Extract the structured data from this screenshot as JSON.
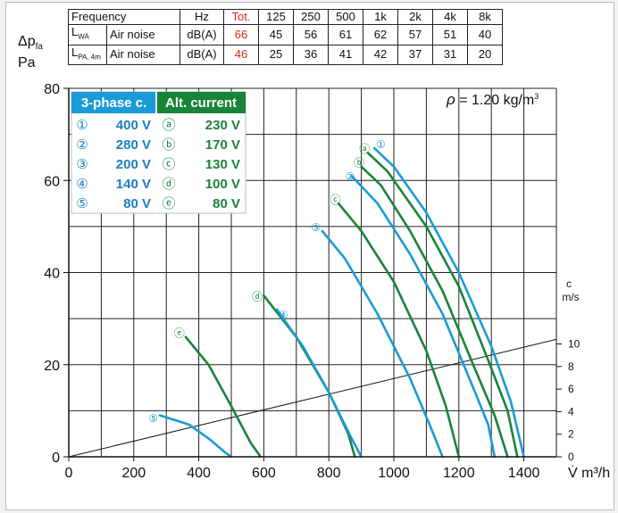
{
  "noise_table": {
    "header": [
      "Frequency",
      "Hz",
      "Tot.",
      "125",
      "250",
      "500",
      "1k",
      "2k",
      "4k",
      "8k"
    ],
    "rows": [
      {
        "code": "L",
        "code_sub": "WA",
        "name": "Air noise",
        "unit": "dB(A)",
        "values": [
          "66",
          "45",
          "56",
          "61",
          "62",
          "57",
          "51",
          "40"
        ]
      },
      {
        "code": "L",
        "code_sub": "PA, 4m",
        "name": "Air noise",
        "unit": "dB(A)",
        "values": [
          "46",
          "25",
          "36",
          "41",
          "42",
          "37",
          "31",
          "20"
        ]
      }
    ],
    "tot_color": "#e2231a"
  },
  "y_axis_label": {
    "symbol": "Δp",
    "sub": "fa",
    "unit": "Pa"
  },
  "density_label": "= 1.20 kg/m",
  "density_symbol": "ρ",
  "density_sup": "3",
  "legend": {
    "header_3phase": "3-phase c.",
    "header_alt": "Alt. current",
    "rows": [
      {
        "num": "①",
        "v3": "400 V",
        "alt": "ⓐ",
        "va": "230 V"
      },
      {
        "num": "②",
        "v3": "280 V",
        "alt": "ⓑ",
        "va": "170 V"
      },
      {
        "num": "③",
        "v3": "200 V",
        "alt": "ⓒ",
        "va": "130 V"
      },
      {
        "num": "④",
        "v3": "140 V",
        "alt": "ⓓ",
        "va": "100 V"
      },
      {
        "num": "⑤",
        "v3": "80 V",
        "alt": "ⓔ",
        "va": "80 V"
      }
    ]
  },
  "colors": {
    "three_phase": "#1a9ad7",
    "alt_current": "#188438",
    "text_3phase": "#1a7fbf",
    "text_alt": "#188438"
  },
  "chart_data": {
    "type": "line",
    "xlabel": "V̇ m³/h",
    "ylabel": "Δp fa Pa",
    "xlim": [
      0,
      1500
    ],
    "ylim": [
      0,
      80
    ],
    "x_ticks": [
      0,
      200,
      400,
      600,
      800,
      1000,
      1200,
      1400
    ],
    "y_ticks": [
      0,
      20,
      40,
      60,
      80
    ],
    "grid": true,
    "secondary_axis": {
      "label_top": "c",
      "label_unit": "m/s",
      "ticks": [
        0,
        2,
        4,
        6,
        8,
        10
      ]
    },
    "velocity_line": {
      "x": [
        0,
        1500
      ],
      "y": [
        0,
        25.5
      ]
    },
    "series": [
      {
        "name": "①",
        "group": "3-phase",
        "x": [
          940,
          1000,
          1100,
          1200,
          1300,
          1360,
          1400
        ],
        "y": [
          67,
          63,
          53,
          40,
          24,
          12,
          0
        ]
      },
      {
        "name": "ⓐ",
        "group": "alt",
        "x": [
          920,
          980,
          1100,
          1200,
          1290,
          1350,
          1380
        ],
        "y": [
          66,
          62,
          50,
          37,
          21,
          10,
          0
        ]
      },
      {
        "name": "ⓑ",
        "group": "alt",
        "x": [
          900,
          960,
          1050,
          1150,
          1250,
          1310,
          1350
        ],
        "y": [
          63,
          59,
          49,
          36,
          19,
          9,
          0
        ]
      },
      {
        "name": "②",
        "group": "3-phase",
        "x": [
          870,
          950,
          1050,
          1150,
          1250,
          1290,
          1310
        ],
        "y": [
          61,
          55,
          44,
          31,
          14,
          7,
          0
        ]
      },
      {
        "name": "ⓒ",
        "group": "alt",
        "x": [
          830,
          900,
          1000,
          1100,
          1160,
          1200
        ],
        "y": [
          55,
          49,
          38,
          23,
          11,
          0
        ]
      },
      {
        "name": "③",
        "group": "3-phase",
        "x": [
          780,
          850,
          950,
          1050,
          1110,
          1150
        ],
        "y": [
          49,
          43,
          31,
          17,
          7,
          0
        ]
      },
      {
        "name": "ⓓ",
        "group": "alt",
        "x": [
          600,
          700,
          800,
          860,
          880
        ],
        "y": [
          35,
          26,
          14,
          5,
          0
        ]
      },
      {
        "name": "④",
        "group": "3-phase",
        "x": [
          640,
          720,
          800,
          870,
          900
        ],
        "y": [
          32,
          24,
          14,
          4,
          0
        ]
      },
      {
        "name": "ⓔ",
        "group": "alt",
        "x": [
          360,
          430,
          500,
          560,
          590
        ],
        "y": [
          26,
          20,
          11,
          3,
          0
        ]
      },
      {
        "name": "⑤",
        "group": "3-phase",
        "x": [
          280,
          370,
          430,
          480,
          500
        ],
        "y": [
          9,
          7,
          4,
          1,
          0
        ]
      }
    ],
    "curve_labels": [
      {
        "text": "①",
        "x": 960,
        "y": 68,
        "group": "3-phase"
      },
      {
        "text": "ⓐ",
        "x": 910,
        "y": 67,
        "group": "alt"
      },
      {
        "text": "ⓑ",
        "x": 893,
        "y": 64,
        "group": "alt"
      },
      {
        "text": "②",
        "x": 865,
        "y": 61,
        "group": "3-phase"
      },
      {
        "text": "ⓒ",
        "x": 820,
        "y": 56,
        "group": "alt"
      },
      {
        "text": "③",
        "x": 760,
        "y": 50,
        "group": "3-phase"
      },
      {
        "text": "ⓓ",
        "x": 580,
        "y": 35,
        "group": "alt"
      },
      {
        "text": "④",
        "x": 660,
        "y": 31,
        "group": "3-phase"
      },
      {
        "text": "ⓔ",
        "x": 340,
        "y": 27,
        "group": "alt"
      },
      {
        "text": "⑤",
        "x": 260,
        "y": 8.5,
        "group": "3-phase"
      }
    ]
  }
}
